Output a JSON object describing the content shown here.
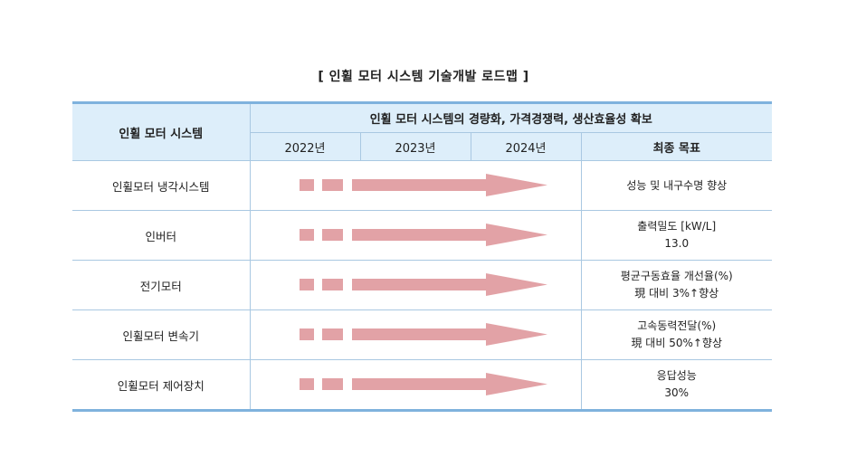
{
  "title": "[ 인휠 모터 시스템 기술개발 로드맵 ]",
  "header": {
    "system_col": "인휠 모터 시스템",
    "goal_banner": "인휠 모터 시스템의 경량화, 가격경쟁력, 생산효율성 확보",
    "years": [
      "2022년",
      "2023년",
      "2024년"
    ],
    "final_goal": "최종 목표"
  },
  "rows": [
    {
      "name": "인휠모터 냉각시스템",
      "goal_line1": "성능 및 내구수명 향상",
      "goal_line2": ""
    },
    {
      "name": "인버터",
      "goal_line1": "출력밀도 [kW/L]",
      "goal_line2": "13.0"
    },
    {
      "name": "전기모터",
      "goal_line1": "평균구동효율 개선율(%)",
      "goal_line2": "現 대비 3%↑향상"
    },
    {
      "name": "인휠모터 변속기",
      "goal_line1": "고속동력전달(%)",
      "goal_line2": "現 대비 50%↑향상"
    },
    {
      "name": "인휠모터 제어장치",
      "goal_line1": "응답성능",
      "goal_line2": "30%"
    }
  ],
  "colors": {
    "arrow": "#e2a2a6",
    "header_bg": "#ddeefa",
    "border": "#7fb2dd"
  }
}
